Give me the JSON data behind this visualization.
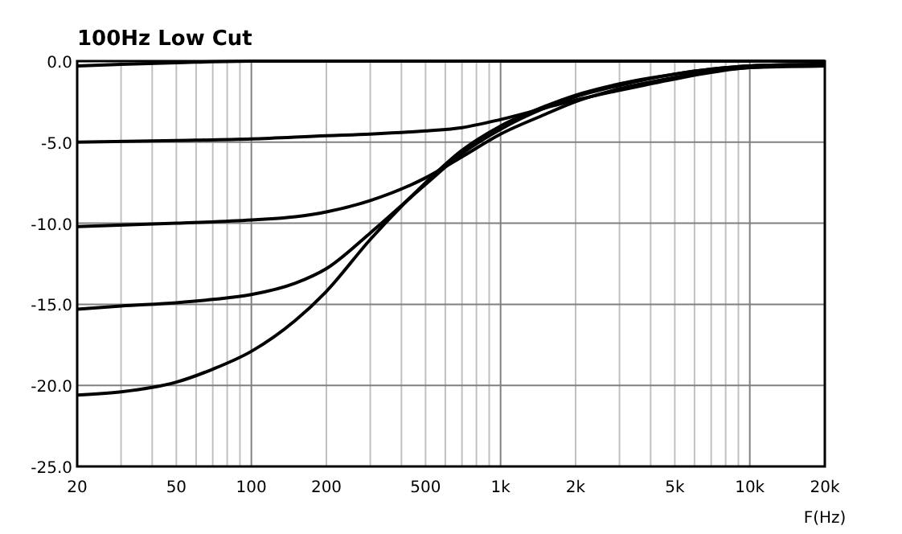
{
  "chart_data": {
    "type": "line",
    "title": "100Hz Low Cut",
    "xlabel": "F(Hz)",
    "log": "x",
    "grid": true,
    "line_style": "solid",
    "xlim": [
      20,
      20000
    ],
    "ylim": [
      -25,
      0
    ],
    "xticks": [
      20,
      {
        "value": 30,
        "label": null
      },
      {
        "value": 40,
        "label": null
      },
      50,
      {
        "value": 60,
        "label": null
      },
      {
        "value": 70,
        "label": null
      },
      {
        "value": 80,
        "label": null
      },
      {
        "value": 90,
        "label": null
      },
      100,
      200,
      {
        "value": 300,
        "label": null
      },
      {
        "value": 400,
        "label": null
      },
      500,
      {
        "value": 600,
        "label": null
      },
      {
        "value": 700,
        "label": null
      },
      {
        "value": 800,
        "label": null
      },
      {
        "value": 900,
        "label": null
      },
      {
        "value": 1000,
        "label": "1k"
      },
      {
        "value": 2000,
        "label": "2k"
      },
      {
        "value": 3000,
        "label": null
      },
      {
        "value": 4000,
        "label": null
      },
      {
        "value": 5000,
        "label": "5k"
      },
      {
        "value": 6000,
        "label": null
      },
      {
        "value": 7000,
        "label": null
      },
      {
        "value": 8000,
        "label": null
      },
      {
        "value": 9000,
        "label": null
      },
      {
        "value": 10000,
        "label": "10k"
      },
      {
        "value": 20000,
        "label": "20k"
      }
    ],
    "yticks": [
      {
        "value": -25,
        "label": "-25.0"
      },
      {
        "value": -20,
        "label": "-20.0"
      },
      {
        "value": -15,
        "label": "-15.0"
      },
      {
        "value": -10,
        "label": "-10.0"
      },
      {
        "value": -5,
        "label": "-5.0"
      },
      {
        "value": 0,
        "label": "0.0"
      }
    ],
    "series": [
      {
        "color": "#000000",
        "x": [
          20,
          30,
          50,
          100,
          20000
        ],
        "values": [
          -0.3,
          -0.2,
          -0.1,
          0,
          0
        ]
      },
      {
        "color": "#000000",
        "x": [
          20,
          50,
          100,
          200,
          300,
          500,
          700,
          1000,
          1500,
          2000,
          3000,
          5000,
          7000,
          10000,
          20000
        ],
        "values": [
          -5.0,
          -4.9,
          -4.8,
          -4.6,
          -4.5,
          -4.3,
          -4.1,
          -3.6,
          -2.9,
          -2.4,
          -1.8,
          -1.1,
          -0.7,
          -0.4,
          -0.3
        ]
      },
      {
        "color": "#000000",
        "x": [
          20,
          50,
          100,
          150,
          200,
          300,
          500,
          700,
          1000,
          1500,
          2000,
          3000,
          5000,
          7000,
          10000,
          20000
        ],
        "values": [
          -10.2,
          -10.0,
          -9.8,
          -9.6,
          -9.3,
          -8.6,
          -7.2,
          -5.9,
          -4.5,
          -3.3,
          -2.5,
          -1.7,
          -1.0,
          -0.6,
          -0.4,
          -0.2
        ]
      },
      {
        "color": "#000000",
        "x": [
          20,
          30,
          50,
          70,
          100,
          150,
          200,
          300,
          500,
          700,
          1000,
          1500,
          2000,
          3000,
          5000,
          7000,
          10000,
          20000
        ],
        "values": [
          -15.3,
          -15.1,
          -14.9,
          -14.7,
          -14.4,
          -13.7,
          -12.8,
          -10.6,
          -7.6,
          -5.7,
          -4.2,
          -2.9,
          -2.2,
          -1.5,
          -0.8,
          -0.5,
          -0.3,
          -0.2
        ]
      },
      {
        "color": "#000000",
        "x": [
          20,
          30,
          50,
          70,
          100,
          150,
          200,
          300,
          500,
          700,
          1000,
          1500,
          2000,
          3000,
          5000,
          7000,
          10000,
          20000
        ],
        "values": [
          -20.6,
          -20.4,
          -19.8,
          -19.0,
          -17.9,
          -16.0,
          -14.2,
          -11.0,
          -7.5,
          -5.5,
          -4.0,
          -2.8,
          -2.1,
          -1.4,
          -0.8,
          -0.5,
          -0.3,
          -0.2
        ]
      }
    ]
  }
}
